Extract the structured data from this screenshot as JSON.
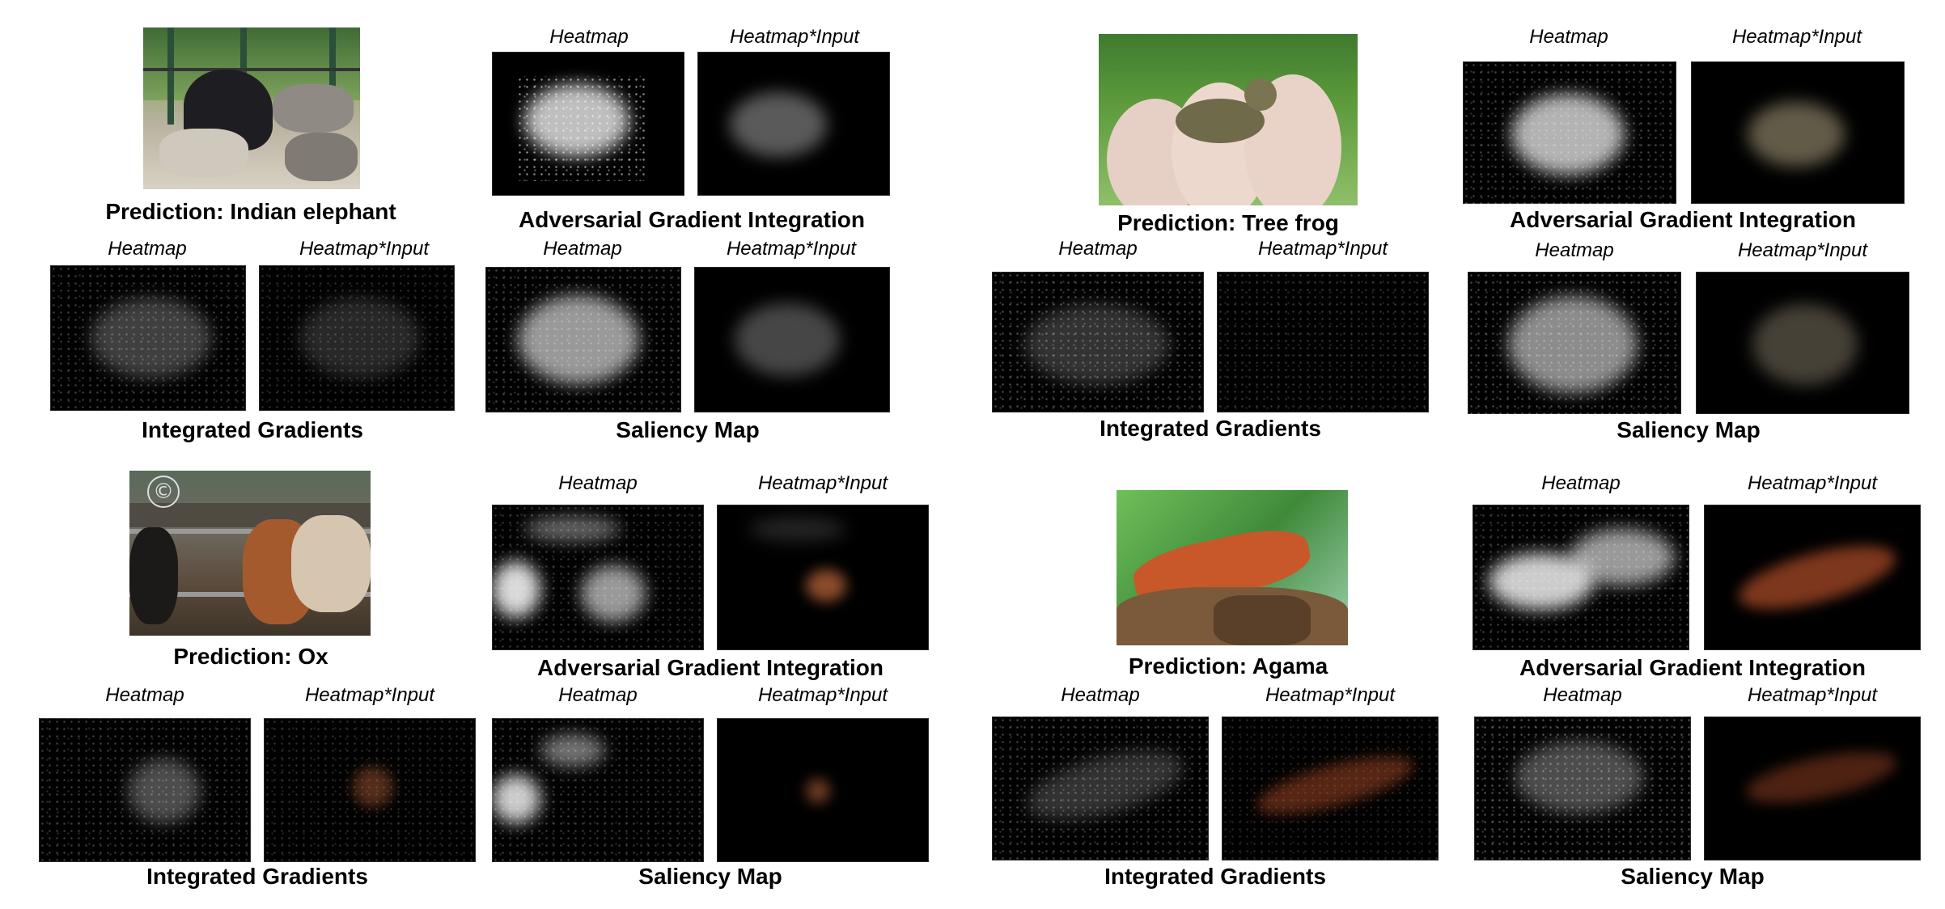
{
  "labels": {
    "heatmap": "Heatmap",
    "heatmap_input": "Heatmap*Input",
    "adversarial": "Adversarial Gradient Integration",
    "integrated": "Integrated Gradients",
    "saliency": "Saliency Map"
  },
  "panels": [
    {
      "prediction": "Prediction: Indian elephant"
    },
    {
      "prediction": "Prediction: Tree frog"
    },
    {
      "prediction": "Prediction: Ox"
    },
    {
      "prediction": "Prediction: Agama"
    }
  ],
  "colors": {
    "background": "#ffffff",
    "heatmap_bg": "#000000",
    "heat_white": "#ffffff",
    "ox_highlight": "#b8643a",
    "agama_highlight": "#c0542c"
  },
  "watermark": "©"
}
